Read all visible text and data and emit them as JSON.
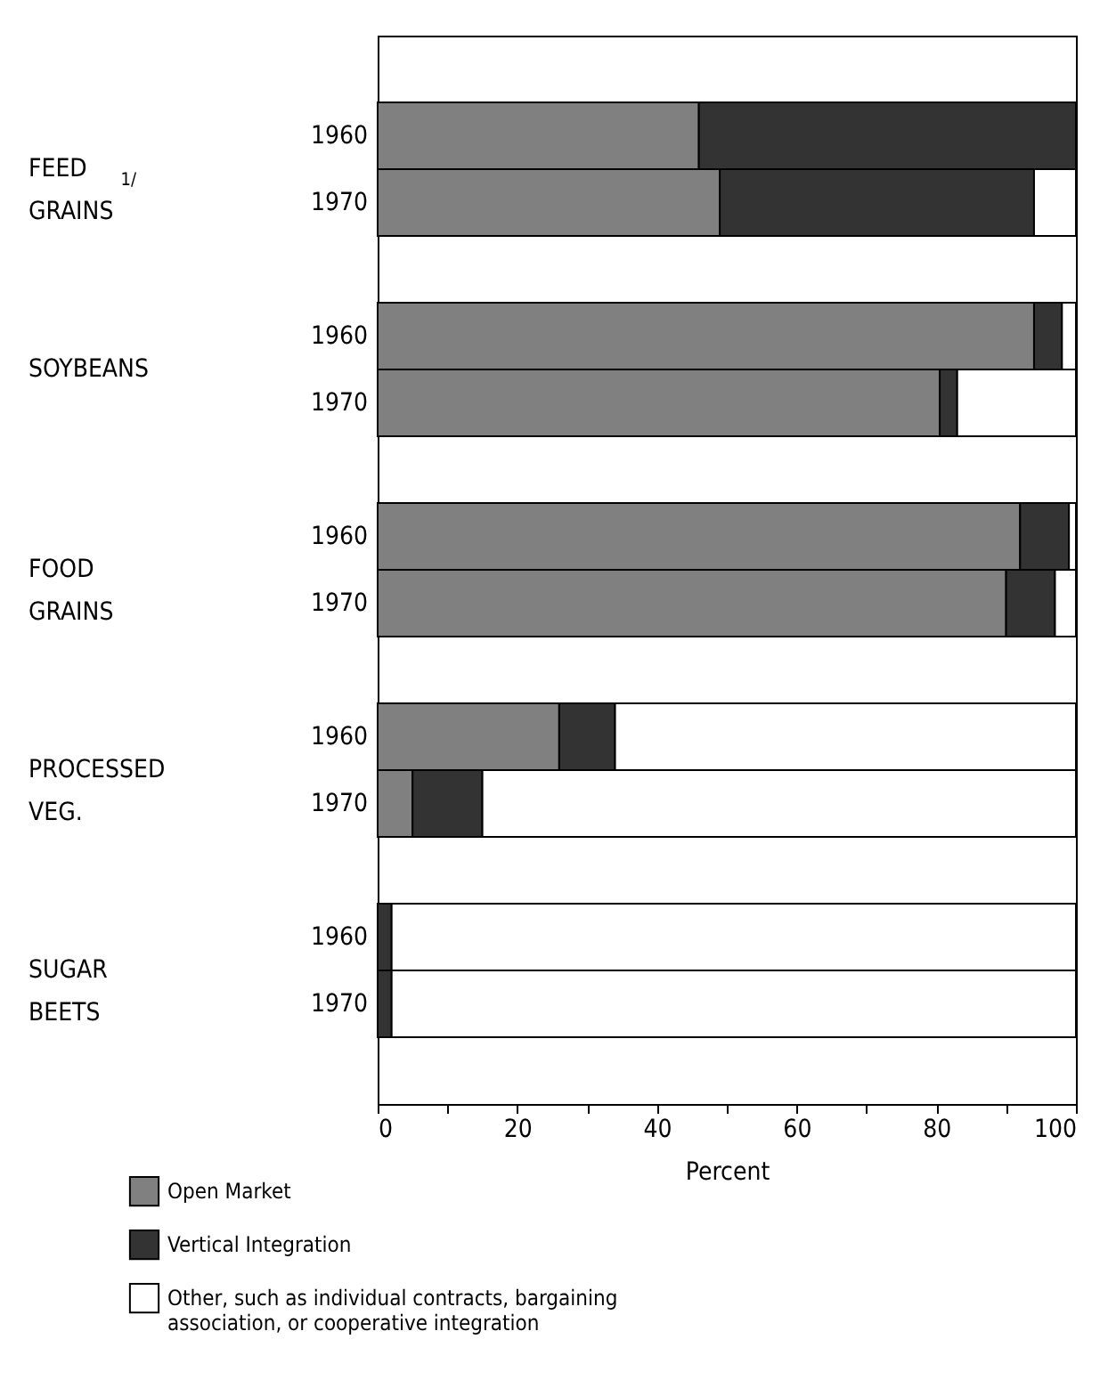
{
  "chart_data": {
    "type": "bar",
    "orientation": "horizontal",
    "stacked": true,
    "categories": [
      "1960",
      "1970",
      "1960",
      "1970",
      "1960",
      "1970",
      "1960",
      "1970",
      "1960",
      "1970"
    ],
    "series": [
      {
        "name": "Open Market",
        "color": "#808080",
        "values": [
          46,
          49,
          94,
          80.5,
          92,
          90,
          26,
          5,
          0,
          0
        ]
      },
      {
        "name": "Vertical Integration",
        "color": "#333333",
        "values": [
          54,
          45,
          4,
          2.5,
          7,
          7,
          8,
          10,
          2,
          2
        ]
      },
      {
        "name": "Other, such as individual contracts, bargaining association, or cooperative integration",
        "color": "#ffffff",
        "values": [
          0,
          6,
          2,
          17,
          1,
          3,
          66,
          85,
          98,
          98
        ]
      }
    ],
    "xlim": [
      0,
      100
    ],
    "xticks": [
      0,
      {
        "value": 10,
        "label": null
      },
      20,
      {
        "value": 30,
        "label": null
      },
      40,
      {
        "value": 50,
        "label": null
      },
      60,
      {
        "value": 70,
        "label": null
      },
      80,
      {
        "value": 90,
        "label": null
      },
      100
    ],
    "xlabel": "Percent",
    "legend": "bottom left",
    "annotations": [
      "FEED GRAINS$^{1/}$",
      "SOYBEANS",
      "FOOD GRAINS",
      "PROCESSED VEG.",
      "SUGAR BEETS"
    ]
  }
}
